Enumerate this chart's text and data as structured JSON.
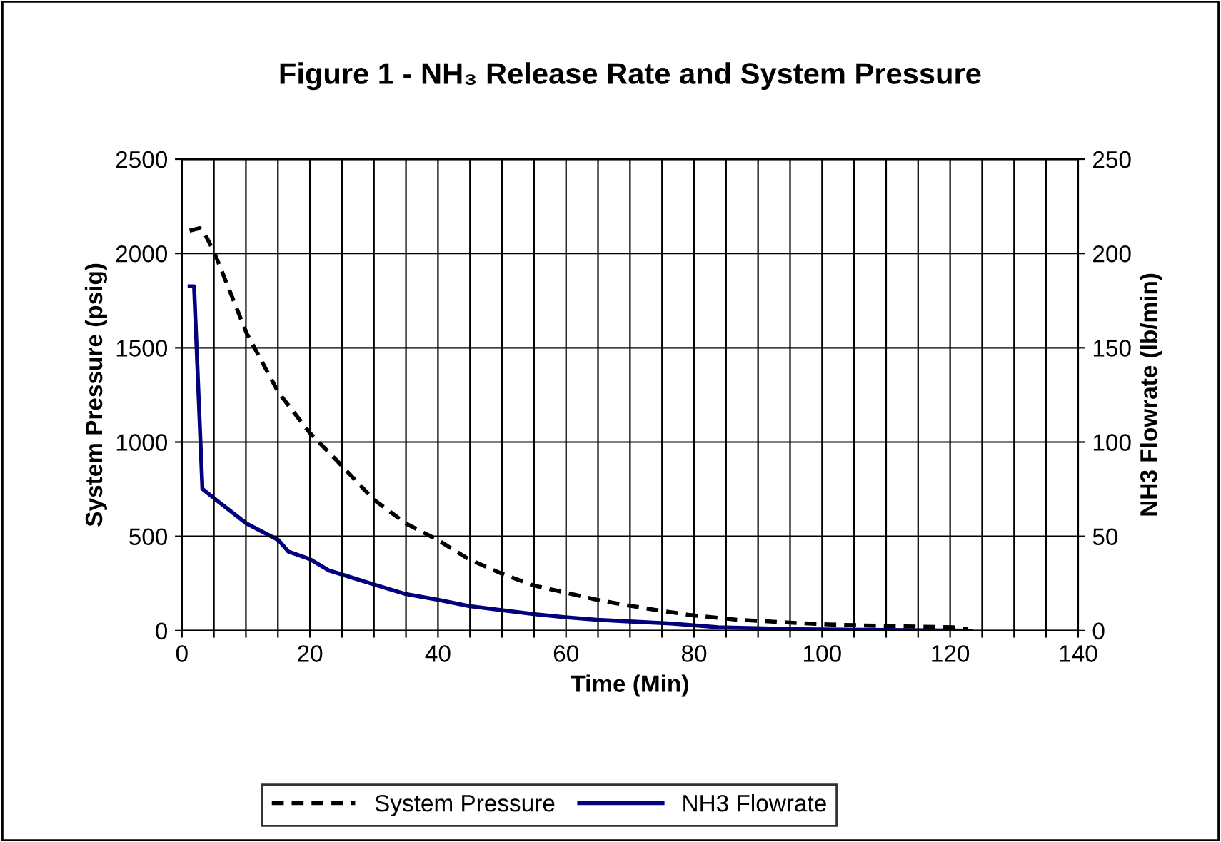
{
  "chart_data": {
    "type": "line",
    "title": "Figure 1 - NH₃ Release Rate and System Pressure",
    "xlabel": "Time (Min)",
    "ylabel": "System Pressure (psig)",
    "y2label": "NH3 Flowrate (lb/min)",
    "xlim": [
      0,
      140
    ],
    "xticks": [
      0,
      {
        "value": 5,
        "label": null
      },
      {
        "value": 10,
        "label": null
      },
      {
        "value": 15,
        "label": null
      },
      20,
      {
        "value": 25,
        "label": null
      },
      {
        "value": 30,
        "label": null
      },
      {
        "value": 35,
        "label": null
      },
      40,
      {
        "value": 45,
        "label": null
      },
      {
        "value": 50,
        "label": null
      },
      {
        "value": 55,
        "label": null
      },
      60,
      {
        "value": 65,
        "label": null
      },
      {
        "value": 70,
        "label": null
      },
      {
        "value": 75,
        "label": null
      },
      80,
      {
        "value": 85,
        "label": null
      },
      {
        "value": 90,
        "label": null
      },
      {
        "value": 95,
        "label": null
      },
      100,
      {
        "value": 105,
        "label": null
      },
      {
        "value": 110,
        "label": null
      },
      {
        "value": 115,
        "label": null
      },
      120,
      {
        "value": 125,
        "label": null
      },
      {
        "value": 130,
        "label": null
      },
      {
        "value": 135,
        "label": null
      },
      140
    ],
    "ylim": [
      0,
      2500
    ],
    "yticks": [
      0,
      500,
      1000,
      1500,
      2000,
      2500
    ],
    "y2lim": [
      0,
      250
    ],
    "y2ticks": [
      0,
      50,
      100,
      150,
      200,
      250
    ],
    "grid": true,
    "legend": "bottom",
    "marker": "none",
    "series": [
      {
        "name": "System Pressure",
        "color": "#000000",
        "line_style": "dashed",
        "axis": "y",
        "x": [
          1.2,
          2.8,
          3.7,
          5.1,
          10.1,
          15.1,
          20,
          24,
          30,
          35,
          40,
          44.8,
          49.9,
          54.9,
          59.9,
          64.8,
          69.7,
          74.2,
          79.4,
          86.8,
          94.9,
          101,
          109.9,
          120.5,
          122.8
        ],
        "values": [
          2121,
          2134,
          2096,
          2002,
          1578,
          1262,
          1048,
          909,
          694,
          568,
          480,
          379,
          303,
          240,
          202,
          164,
          134,
          109,
          83,
          58,
          43,
          33,
          25,
          18,
          8
        ]
      },
      {
        "name": "NH3 Flowrate",
        "color": "#000080",
        "line_style": "solid",
        "axis": "y2",
        "x": [
          1.2,
          1.9,
          3.2,
          5.1,
          10.1,
          15.1,
          16.6,
          20,
          22.9,
          30,
          35,
          40,
          44.8,
          49.9,
          54.9,
          59.9,
          64.8,
          69.4,
          76.4,
          83.8,
          96.5,
          123.2
        ],
        "values": [
          182.6,
          182.6,
          75.2,
          70,
          56.8,
          48,
          42,
          37.9,
          32,
          24.5,
          19.4,
          16.4,
          13.1,
          10.9,
          8.8,
          7.1,
          5.8,
          5,
          3.8,
          1.8,
          0.8,
          0
        ]
      }
    ]
  }
}
